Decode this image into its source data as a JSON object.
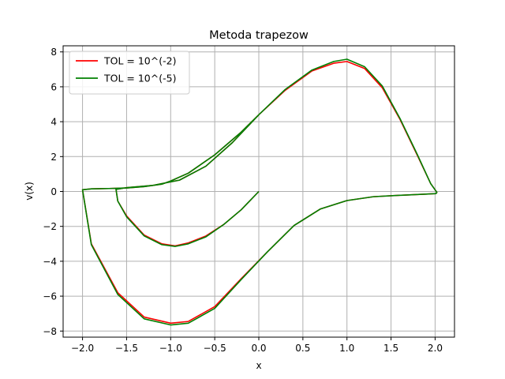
{
  "chart_data": {
    "type": "line",
    "title": "Metoda trapezow",
    "xlabel": "x",
    "ylabel": "v(x)",
    "xlim": [
      -2.22,
      2.22
    ],
    "ylim": [
      -8.35,
      8.35
    ],
    "xticks": [
      -2.0,
      -1.5,
      -1.0,
      -0.5,
      0.0,
      0.5,
      1.0,
      1.5,
      2.0
    ],
    "xtick_labels": [
      "−2.0",
      "−1.5",
      "−1.0",
      "−0.5",
      "0.0",
      "0.5",
      "1.0",
      "1.5",
      "2.0"
    ],
    "yticks": [
      -8,
      -6,
      -4,
      -2,
      0,
      2,
      4,
      6,
      8
    ],
    "ytick_labels": [
      "−8",
      "−6",
      "−4",
      "−2",
      "0",
      "2",
      "4",
      "6",
      "8"
    ],
    "grid": true,
    "legend_position": "top-left",
    "series": [
      {
        "name": "TOL = 10^(-2)",
        "color": "#ff0000",
        "x": [
          0.0,
          -0.2,
          -0.4,
          -0.6,
          -0.8,
          -0.95,
          -1.1,
          -1.3,
          -1.5,
          -1.6,
          -1.62,
          -1.5,
          -1.2,
          -0.9,
          -0.6,
          -0.3,
          0.0,
          0.3,
          0.6,
          0.85,
          1.0,
          1.2,
          1.4,
          1.6,
          1.8,
          1.95,
          2.02,
          2.01,
          1.9,
          1.6,
          1.3,
          1.0,
          0.7,
          0.4,
          0.1,
          -0.2,
          -0.5,
          -0.8,
          -1.0,
          -1.3,
          -1.6,
          -1.9,
          -2.0,
          -1.9,
          -1.7,
          -1.5,
          -1.3,
          -1.1,
          -1.0,
          -0.8,
          -0.5,
          -0.2,
          0.0
        ],
        "y": [
          0.0,
          -1.05,
          -1.9,
          -2.55,
          -2.95,
          -3.12,
          -3.0,
          -2.5,
          -1.4,
          -0.55,
          0.12,
          0.22,
          0.35,
          0.65,
          1.45,
          2.8,
          4.4,
          5.8,
          6.9,
          7.35,
          7.45,
          7.05,
          5.95,
          4.15,
          2.05,
          0.45,
          -0.05,
          -0.12,
          -0.15,
          -0.22,
          -0.3,
          -0.52,
          -1.0,
          -1.95,
          -3.45,
          -5.0,
          -6.6,
          -7.45,
          -7.55,
          -7.2,
          -5.8,
          -3.0,
          0.1,
          0.15,
          0.17,
          0.2,
          0.28,
          0.42,
          0.6,
          1.05,
          2.1,
          3.4,
          4.4
        ]
      },
      {
        "name": "TOL = 10^(-5)",
        "color": "#008000",
        "x": [
          0.0,
          -0.2,
          -0.4,
          -0.6,
          -0.8,
          -0.95,
          -1.1,
          -1.3,
          -1.5,
          -1.6,
          -1.62,
          -1.5,
          -1.2,
          -0.9,
          -0.6,
          -0.3,
          0.0,
          0.3,
          0.6,
          0.85,
          1.0,
          1.2,
          1.4,
          1.6,
          1.8,
          1.95,
          2.02,
          2.01,
          1.9,
          1.6,
          1.3,
          1.0,
          0.7,
          0.4,
          0.1,
          -0.2,
          -0.5,
          -0.8,
          -1.0,
          -1.3,
          -1.6,
          -1.9,
          -2.0,
          -1.9,
          -1.7,
          -1.5,
          -1.3,
          -1.1,
          -1.0,
          -0.8,
          -0.5,
          -0.2,
          0.0
        ],
        "y": [
          0.0,
          -1.05,
          -1.9,
          -2.6,
          -3.0,
          -3.15,
          -3.05,
          -2.55,
          -1.45,
          -0.55,
          0.12,
          0.22,
          0.35,
          0.65,
          1.45,
          2.8,
          4.4,
          5.85,
          6.95,
          7.45,
          7.58,
          7.15,
          6.05,
          4.2,
          2.1,
          0.45,
          -0.05,
          -0.12,
          -0.15,
          -0.22,
          -0.3,
          -0.52,
          -1.0,
          -1.95,
          -3.45,
          -5.05,
          -6.7,
          -7.55,
          -7.65,
          -7.3,
          -5.9,
          -3.05,
          0.1,
          0.15,
          0.17,
          0.2,
          0.28,
          0.42,
          0.6,
          1.05,
          2.1,
          3.4,
          4.4
        ]
      }
    ]
  }
}
